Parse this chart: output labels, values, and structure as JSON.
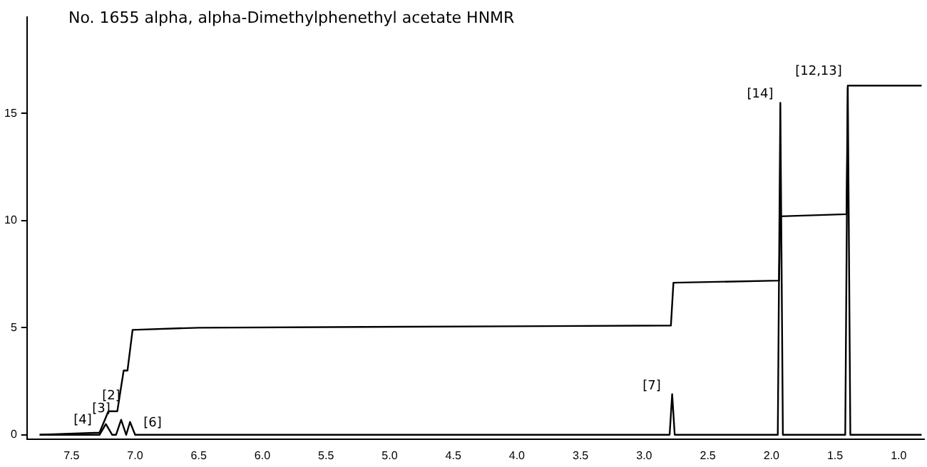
{
  "chart_data": {
    "type": "line",
    "title": "No. 1655 alpha, alpha-Dimethylphenethyl acetate HNMR",
    "xlim": [
      7.85,
      0.8
    ],
    "xticks": [
      7.5,
      {
        "value": 7,
        "label": "7.0"
      },
      6.5,
      {
        "value": 6,
        "label": "6.0"
      },
      5.5,
      {
        "value": 5,
        "label": "5.0"
      },
      4.5,
      {
        "value": 4,
        "label": "4.0"
      },
      3.5,
      {
        "value": 3,
        "label": "3.0"
      },
      2.5,
      {
        "value": 2,
        "label": "2.0"
      },
      1.5,
      {
        "value": 1,
        "label": "1.0"
      }
    ],
    "ylim": [
      -0.2,
      19.5
    ],
    "yticks": [
      0,
      5,
      10,
      15
    ],
    "grid": false,
    "legend": false,
    "marker": "none",
    "line_style": "solid",
    "series": [
      {
        "color": "#000000",
        "x": [
          7.75,
          7.28,
          7.23,
          7.18,
          7.15,
          7.11,
          7.07,
          7.04,
          7.0,
          2.8,
          2.78,
          2.76,
          1.95,
          1.93,
          1.91,
          1.42,
          1.4,
          1.38,
          0.82
        ],
        "values": [
          0,
          0,
          0.5,
          0,
          0,
          0.7,
          0,
          0.6,
          0,
          0,
          1.9,
          0,
          0,
          15.5,
          0,
          0,
          16.2,
          0,
          0
        ]
      },
      {
        "color": "#000000",
        "x": [
          7.75,
          7.28,
          7.21,
          7.14,
          7.09,
          7.06,
          7.02,
          6.5,
          2.79,
          2.77,
          1.94,
          1.93,
          1.41,
          1.4,
          0.82
        ],
        "values": [
          0,
          0.1,
          1.1,
          1.1,
          3.0,
          3.0,
          4.9,
          5.0,
          5.1,
          7.1,
          7.2,
          10.2,
          10.3,
          16.3,
          16.3
        ]
      }
    ],
    "annotations": [
      "[4]",
      "[3]",
      "[2]",
      "[6]",
      "[7]",
      "[14]",
      "[12,13]"
    ]
  }
}
